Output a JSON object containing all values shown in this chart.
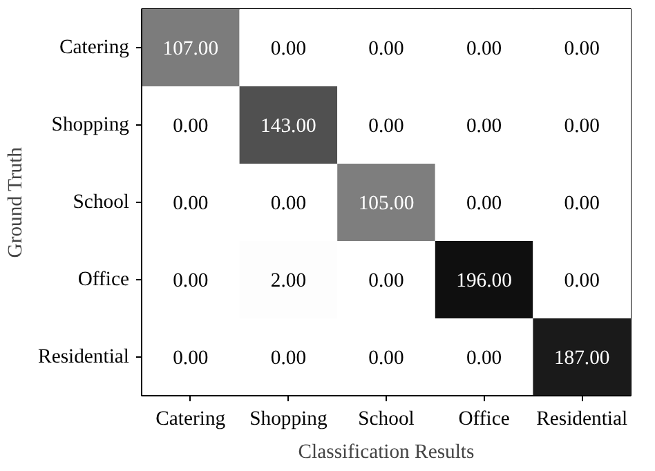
{
  "chart_data": {
    "type": "heatmap",
    "xlabel": "Classification Results",
    "ylabel": "Ground Truth",
    "categories": [
      "Catering",
      "Shopping",
      "School",
      "Office",
      "Residential"
    ],
    "y_categories": [
      "Catering",
      "Shopping",
      "School",
      "Office",
      "Residential"
    ],
    "cells": [
      [
        107,
        0,
        0,
        0,
        0
      ],
      [
        0,
        143,
        0,
        0,
        0
      ],
      [
        0,
        0,
        105,
        0,
        0
      ],
      [
        0,
        2,
        0,
        196,
        0
      ],
      [
        0,
        0,
        0,
        0,
        187
      ]
    ],
    "cell_labels": [
      [
        "107.00",
        "0.00",
        "0.00",
        "0.00",
        "0.00"
      ],
      [
        "0.00",
        "143.00",
        "0.00",
        "0.00",
        "0.00"
      ],
      [
        "0.00",
        "0.00",
        "105.00",
        "0.00",
        "0.00"
      ],
      [
        "0.00",
        "2.00",
        "0.00",
        "196.00",
        "0.00"
      ],
      [
        "0.00",
        "0.00",
        "0.00",
        "0.00",
        "187.00"
      ]
    ]
  }
}
